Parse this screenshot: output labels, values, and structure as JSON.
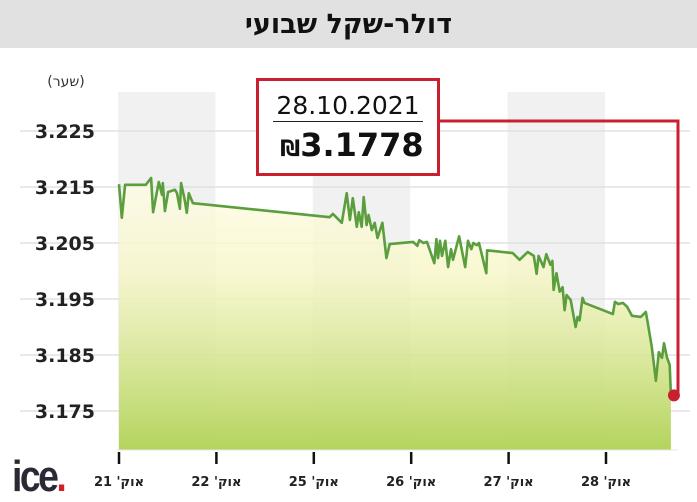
{
  "title": "דולר-שקל שבועי",
  "callout": {
    "date": "28.10.2021",
    "value": "3.1778",
    "currency_symbol": "₪"
  },
  "logo": "ice.",
  "colors": {
    "line": "#5a9e3e",
    "accent": "#c8202f",
    "fill_top": "#fffde6",
    "fill_bottom": "#b3d45c",
    "band": "#f1f1f1"
  },
  "chart_data": {
    "type": "area",
    "title": "דולר-שקל שבועי",
    "ylabel": "(שער)",
    "xlabel": "",
    "ylim": [
      3.175,
      3.225
    ],
    "yticks": [
      "3.225",
      "3.215",
      "3.205",
      "3.195",
      "3.185",
      "3.175"
    ],
    "ytick_values": [
      3.225,
      3.215,
      3.205,
      3.195,
      3.185,
      3.175
    ],
    "categories": [
      "אוק' 21",
      "אוק' 22",
      "אוק' 25",
      "אוק' 26",
      "אוק' 27",
      "אוק' 28"
    ],
    "grid": true,
    "alternating_day_bands": true,
    "last_point": {
      "date": "28.10.2021",
      "value": 3.1778
    },
    "series": [
      {
        "days": [
          {
            "day": "אוק' 21",
            "points": [
              [
                0,
                3.2155
              ],
              [
                0.7,
                3.2095
              ],
              [
                1.5,
                3.2154
              ],
              [
                6.6,
                3.2154
              ],
              [
                7.9,
                3.2166
              ],
              [
                8.4,
                3.2105
              ],
              [
                9.8,
                3.2159
              ],
              [
                10.6,
                3.2136
              ],
              [
                10.8,
                3.2157
              ],
              [
                11.3,
                3.2107
              ],
              [
                12.1,
                3.2141
              ],
              [
                13.8,
                3.2145
              ],
              [
                14.3,
                3.2139
              ],
              [
                15.0,
                3.2111
              ],
              [
                15.3,
                3.2157
              ],
              [
                16.2,
                3.2127
              ],
              [
                16.7,
                3.2104
              ],
              [
                17.2,
                3.2139
              ],
              [
                18.2,
                3.2121
              ]
            ]
          },
          {
            "day": "אוק' 22",
            "points": []
          },
          {
            "day": "אוק' 25",
            "points": [
              [
                3.9,
                3.2096
              ],
              [
                4.7,
                3.2102
              ],
              [
                6.9,
                3.2086
              ],
              [
                8.1,
                3.2139
              ],
              [
                8.9,
                3.2091
              ],
              [
                9.6,
                3.213
              ],
              [
                10.6,
                3.2079
              ],
              [
                11.1,
                3.2105
              ],
              [
                11.8,
                3.2079
              ],
              [
                12.3,
                3.2132
              ],
              [
                13.0,
                3.2082
              ],
              [
                13.5,
                3.21
              ],
              [
                14.3,
                3.2073
              ],
              [
                15.0,
                3.2086
              ],
              [
                15.7,
                3.2059
              ],
              [
                16.9,
                3.2086
              ],
              [
                17.9,
                3.2023
              ],
              [
                18.7,
                3.2048
              ]
            ]
          },
          {
            "day": "אוק' 26",
            "points": [
              [
                0.5,
                3.2052
              ],
              [
                1.5,
                3.2045
              ],
              [
                2.0,
                3.2055
              ],
              [
                3.0,
                3.205
              ],
              [
                3.9,
                3.2052
              ],
              [
                5.7,
                3.2014
              ],
              [
                6.2,
                3.2057
              ],
              [
                6.6,
                3.2023
              ],
              [
                7.1,
                3.2054
              ],
              [
                7.6,
                3.2027
              ],
              [
                8.4,
                3.2054
              ],
              [
                9.1,
                3.2007
              ],
              [
                9.8,
                3.2039
              ],
              [
                10.3,
                3.202
              ],
              [
                11.8,
                3.2062
              ],
              [
                13.3,
                3.2007
              ],
              [
                14.0,
                3.2054
              ],
              [
                14.8,
                3.2039
              ],
              [
                15.3,
                3.205
              ],
              [
                16.2,
                3.2046
              ],
              [
                16.7,
                3.205
              ],
              [
                18.5,
                3.1996
              ],
              [
                18.7,
                3.2037
              ]
            ]
          },
          {
            "day": "אוק' 27",
            "points": [
              [
                1.0,
                3.2032
              ],
              [
                2.7,
                3.202
              ],
              [
                4.7,
                3.2034
              ],
              [
                6.2,
                3.2027
              ],
              [
                6.9,
                3.1995
              ],
              [
                7.4,
                3.2027
              ],
              [
                8.6,
                3.2007
              ],
              [
                9.3,
                3.203
              ],
              [
                10.3,
                3.2011
              ],
              [
                10.8,
                3.2018
              ],
              [
                11.1,
                3.1966
              ],
              [
                11.8,
                3.1996
              ],
              [
                12.6,
                3.1963
              ],
              [
                13.3,
                3.1971
              ],
              [
                13.8,
                3.193
              ],
              [
                14.3,
                3.1957
              ],
              [
                15.3,
                3.1948
              ],
              [
                16.5,
                3.19
              ],
              [
                17.0,
                3.1918
              ],
              [
                17.5,
                3.1912
              ],
              [
                18.2,
                3.1952
              ],
              [
                18.7,
                3.1943
              ]
            ]
          },
          {
            "day": "אוק' 28",
            "points": [
              [
                1.7,
                3.1923
              ],
              [
                2.2,
                3.1945
              ],
              [
                3.0,
                3.1941
              ],
              [
                4.2,
                3.1943
              ],
              [
                5.2,
                3.1936
              ],
              [
                6.4,
                3.192
              ],
              [
                8.6,
                3.1918
              ],
              [
                9.8,
                3.1927
              ],
              [
                10.3,
                3.1907
              ],
              [
                11.3,
                3.1863
              ],
              [
                12.3,
                3.1804
              ],
              [
                13.0,
                3.1855
              ],
              [
                13.8,
                3.1845
              ],
              [
                14.3,
                3.1871
              ],
              [
                15.0,
                3.1846
              ],
              [
                15.7,
                3.1832
              ],
              [
                16.0,
                3.1778
              ]
            ]
          }
        ]
      }
    ]
  }
}
